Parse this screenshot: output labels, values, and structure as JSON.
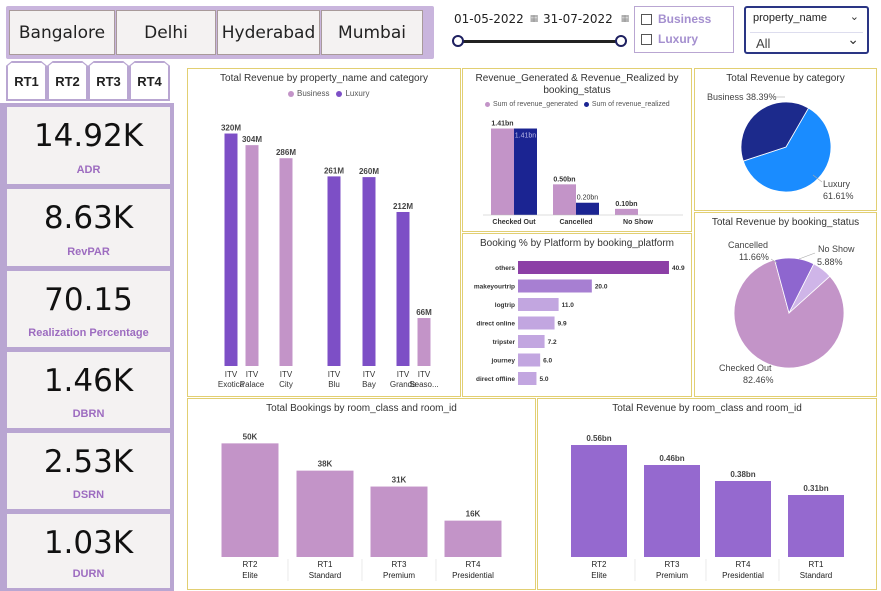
{
  "city_tabs": [
    "Bangalore",
    "Delhi",
    "Hyderabad",
    "Mumbai"
  ],
  "date_range": {
    "start": "01-05-2022",
    "end": "31-07-2022"
  },
  "category_slicer": {
    "items": [
      "Business",
      "Luxury"
    ]
  },
  "property_dropdown": {
    "header": "property_name",
    "value": "All"
  },
  "room_tabs": [
    "RT1",
    "RT2",
    "RT3",
    "RT4"
  ],
  "kpis": [
    {
      "value": "14.92K",
      "label": "ADR"
    },
    {
      "value": "8.63K",
      "label": "RevPAR"
    },
    {
      "value": "70.15",
      "label": "Realization Percentage"
    },
    {
      "value": "1.46K",
      "label": "DBRN"
    },
    {
      "value": "2.53K",
      "label": "DSRN"
    },
    {
      "value": "1.03K",
      "label": "DURN"
    }
  ],
  "colors": {
    "accent": "#b9a6d2",
    "business": "#c394c8",
    "luxury": "#7d4fc6",
    "realized": "#1b2492",
    "panel_border": "#e2cf72",
    "kpi_label": "#9d6cc0"
  },
  "charts": {
    "revenue_by_property": {
      "title": "Total Revenue by property_name and category",
      "legend": [
        "Business",
        "Luxury"
      ]
    },
    "generated_vs_realized": {
      "title": "Revenue_Generated & Revenue_Realized by booking_status",
      "legend": [
        "Sum of revenue_generated",
        "Sum of revenue_realized"
      ]
    },
    "revenue_by_category": {
      "title": "Total Revenue by category"
    },
    "booking_platform": {
      "title": "Booking % by Platform by booking_platform"
    },
    "revenue_by_status": {
      "title": "Total Revenue by booking_status"
    },
    "bookings_by_room": {
      "title": "Total Bookings by room_class and room_id"
    },
    "revenue_by_room": {
      "title": "Total Revenue by room_class and room_id"
    }
  },
  "chart_data": [
    {
      "type": "bar",
      "title": "Total Revenue by property_name and category",
      "categories": [
        "ITV Exotica",
        "ITV Palace",
        "ITV City",
        "ITV Blu",
        "ITV Bay",
        "ITV Grands",
        "ITV Seaso..."
      ],
      "values": [
        320,
        304,
        286,
        261,
        260,
        212,
        66
      ],
      "series_category": [
        "Luxury",
        "Business",
        "Business",
        "Luxury",
        "Luxury",
        "Luxury",
        "Business"
      ],
      "value_labels": [
        "320M",
        "304M",
        "286M",
        "261M",
        "260M",
        "212M",
        "66M"
      ],
      "legend": [
        "Business",
        "Luxury"
      ],
      "ylim": [
        0,
        340
      ]
    },
    {
      "type": "bar",
      "title": "Revenue_Generated & Revenue_Realized by booking_status",
      "categories": [
        "Checked Out",
        "Cancelled",
        "No Show"
      ],
      "series": [
        {
          "name": "Sum of revenue_generated",
          "values": [
            1.41,
            0.5,
            0.1
          ],
          "labels": [
            "1.41bn",
            "0.50bn",
            "0.10bn"
          ]
        },
        {
          "name": "Sum of revenue_realized",
          "values": [
            1.41,
            0.2,
            0.0
          ],
          "labels": [
            "1.41bn",
            "0.20bn",
            ""
          ]
        }
      ],
      "ylim": [
        0,
        1.5
      ]
    },
    {
      "type": "pie",
      "title": "Total Revenue by category",
      "categories": [
        "Business",
        "Luxury"
      ],
      "values": [
        38.39,
        61.61
      ],
      "labels": [
        "Business 38.39%",
        "Luxury 61.61%"
      ]
    },
    {
      "type": "bar",
      "title": "Booking % by Platform by booking_platform",
      "orientation": "horizontal",
      "categories": [
        "others",
        "makeyourtrip",
        "logtrip",
        "direct online",
        "tripster",
        "journey",
        "direct offline"
      ],
      "values": [
        40.9,
        20.0,
        11.0,
        9.9,
        7.2,
        6.0,
        5.0
      ],
      "value_labels": [
        "40.9",
        "20.0",
        "11.0",
        "9.9",
        "7.2",
        "6.0",
        "5.0"
      ],
      "xlim": [
        0,
        45
      ]
    },
    {
      "type": "pie",
      "title": "Total Revenue by booking_status",
      "categories": [
        "Checked Out",
        "Cancelled",
        "No Show"
      ],
      "values": [
        82.46,
        11.66,
        5.88
      ],
      "labels": [
        "Checked Out 82.46%",
        "Cancelled 11.66%",
        "No Show 5.88%"
      ]
    },
    {
      "type": "bar",
      "title": "Total Bookings by room_class and room_id",
      "categories": [
        "RT2 Elite",
        "RT1 Standard",
        "RT3 Premium",
        "RT4 Presidential"
      ],
      "category_lines": [
        [
          "RT2",
          "Elite"
        ],
        [
          "RT1",
          "Standard"
        ],
        [
          "RT3",
          "Premium"
        ],
        [
          "RT4",
          "Presidential"
        ]
      ],
      "values": [
        50,
        38,
        31,
        16
      ],
      "value_labels": [
        "50K",
        "38K",
        "31K",
        "16K"
      ],
      "ylim": [
        0,
        55
      ]
    },
    {
      "type": "bar",
      "title": "Total Revenue by room_class and room_id",
      "categories": [
        "RT2 Elite",
        "RT3 Premium",
        "RT4 Presidential",
        "RT1 Standard"
      ],
      "category_lines": [
        [
          "RT2",
          "Elite"
        ],
        [
          "RT3",
          "Premium"
        ],
        [
          "RT4",
          "Presidential"
        ],
        [
          "RT1",
          "Standard"
        ]
      ],
      "values": [
        0.56,
        0.46,
        0.38,
        0.31
      ],
      "value_labels": [
        "0.56bn",
        "0.46bn",
        "0.38bn",
        "0.31bn"
      ],
      "ylim": [
        0,
        0.62
      ]
    }
  ]
}
